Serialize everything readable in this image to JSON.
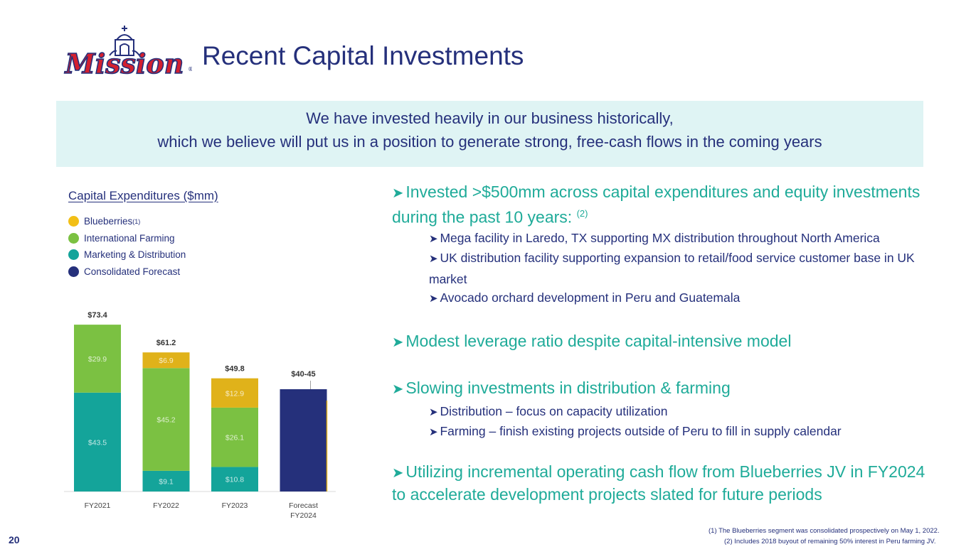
{
  "header": {
    "logo_text": "Mission",
    "title": "Recent Capital Investments"
  },
  "banner": {
    "line1": "We have invested heavily in our business historically,",
    "line2": "which we believe will put us in a position to generate strong, free-cash flows in the coming years"
  },
  "colors": {
    "navy": "#25307b",
    "teal": "#14a49a",
    "green": "#7bc142",
    "gold": "#e0b21a",
    "bullet_teal": "#1fab99",
    "logo_red": "#d3202f"
  },
  "chart_title": "Capital Expenditures ($mm)",
  "legend": [
    {
      "label": "Blueberries",
      "sup": "(1)",
      "color": "#f2bf16"
    },
    {
      "label": "International Farming",
      "sup": "",
      "color": "#7bc142"
    },
    {
      "label": "Marketing & Distribution",
      "sup": "",
      "color": "#14a49a"
    },
    {
      "label": "Consolidated Forecast",
      "sup": "",
      "color": "#25307b"
    }
  ],
  "chart_data": {
    "type": "bar",
    "stacked": true,
    "categories": [
      "FY2021",
      "FY2022",
      "FY2023",
      "Forecast FY2024"
    ],
    "series": [
      {
        "name": "Marketing & Distribution",
        "color": "#14a49a",
        "values": [
          43.5,
          9.1,
          10.8,
          null
        ],
        "labels": [
          "$43.5",
          "$9.1",
          "$10.8",
          ""
        ]
      },
      {
        "name": "International Farming",
        "color": "#7bc142",
        "values": [
          29.9,
          45.2,
          26.1,
          null
        ],
        "labels": [
          "$29.9",
          "$45.2",
          "$26.1",
          ""
        ]
      },
      {
        "name": "Blueberries",
        "color": "#e0b21a",
        "values": [
          0,
          6.9,
          12.9,
          null
        ],
        "labels": [
          "",
          "$6.9",
          "$12.9",
          ""
        ]
      },
      {
        "name": "Consolidated Forecast",
        "color": "#25307b",
        "values": [
          null,
          null,
          null,
          45
        ],
        "range": [
          40,
          45
        ],
        "labels": [
          "",
          "",
          "",
          ""
        ]
      }
    ],
    "totals": [
      "$73.4",
      "$61.2",
      "$49.8",
      "$40-45"
    ],
    "ylim": [
      0,
      80
    ],
    "grid": false,
    "legend_position": "top-left"
  },
  "bullets": {
    "b1_line1": "Invested >$500mm across capital expenditures and equity investments",
    "b1_line2": "during the past 10 years:",
    "b1_sup": "(2)",
    "b1_sub1": "Mega facility in Laredo, TX supporting MX distribution throughout North America",
    "b1_sub2": "UK distribution facility supporting expansion to retail/food service customer base in UK market",
    "b1_sub3": "Avocado orchard development in Peru and Guatemala",
    "b2": "Modest leverage ratio despite capital-intensive model",
    "b3": "Slowing investments in distribution & farming",
    "b3_sub1": "Distribution – focus on capacity utilization",
    "b3_sub2": "Farming – finish existing projects outside of Peru to fill in supply calendar",
    "b4_line1": "Utilizing incremental operating cash flow from Blueberries JV in FY2024",
    "b4_line2": "to accelerate development projects slated for future periods"
  },
  "page_number": "20",
  "footnotes": {
    "f1": "(1)     The Blueberries segment was consolidated prospectively on May 1, 2022.",
    "f2": "(2)     Includes 2018 buyout of remaining 50% interest in Peru farming JV."
  }
}
